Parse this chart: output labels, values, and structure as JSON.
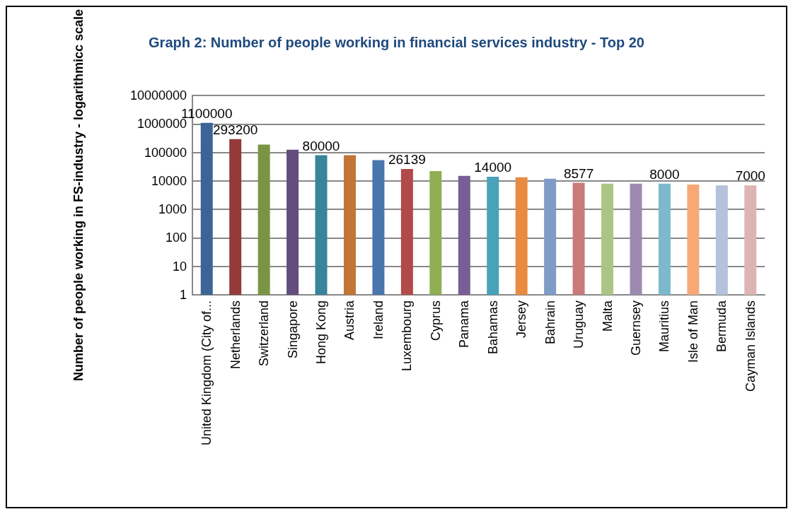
{
  "chart_data": {
    "type": "bar",
    "title": "Graph 2: Number of people working in financial services industry - Top 20",
    "ylabel": "Number of people working in FS-industry - logarithmicc scale",
    "categories": [
      "United Kingdom (City of...",
      "Netherlands",
      "Switzerland",
      "Singapore",
      "Hong Kong",
      "Austria",
      "Ireland",
      "Luxembourg",
      "Cyprus",
      "Panama",
      "Bahamas",
      "Jersey",
      "Bahrain",
      "Uruguay",
      "Malta",
      "Guernsey",
      "Mauritius",
      "Isle of Man",
      "Bermuda",
      "Cayman Islands"
    ],
    "values": [
      1100000,
      293200,
      190000,
      125000,
      80000,
      80000,
      54000,
      26139,
      22000,
      15000,
      14000,
      13500,
      12000,
      8577,
      8000,
      8000,
      8000,
      7500,
      7000,
      7000
    ],
    "value_labels": [
      "1100000",
      "293200",
      null,
      null,
      "80000",
      null,
      null,
      "26139",
      null,
      null,
      "14000",
      null,
      null,
      "8577",
      null,
      null,
      "8000",
      null,
      null,
      "7000"
    ],
    "colors": [
      "#3c6496",
      "#953a3a",
      "#7a9443",
      "#624d7c",
      "#38849a",
      "#c27535",
      "#4a76ae",
      "#b24a4a",
      "#90ae52",
      "#785d96",
      "#48a2ba",
      "#e88b40",
      "#7f9cc6",
      "#c97a7a",
      "#adc584",
      "#9c8ab0",
      "#7cb9cd",
      "#f6a977",
      "#b4c2dc",
      "#ddb4b4"
    ],
    "log": true,
    "ylim": [
      1,
      10000000
    ],
    "yticks": [
      1,
      10,
      100,
      1000,
      10000,
      100000,
      1000000,
      10000000
    ],
    "grid": "y"
  }
}
